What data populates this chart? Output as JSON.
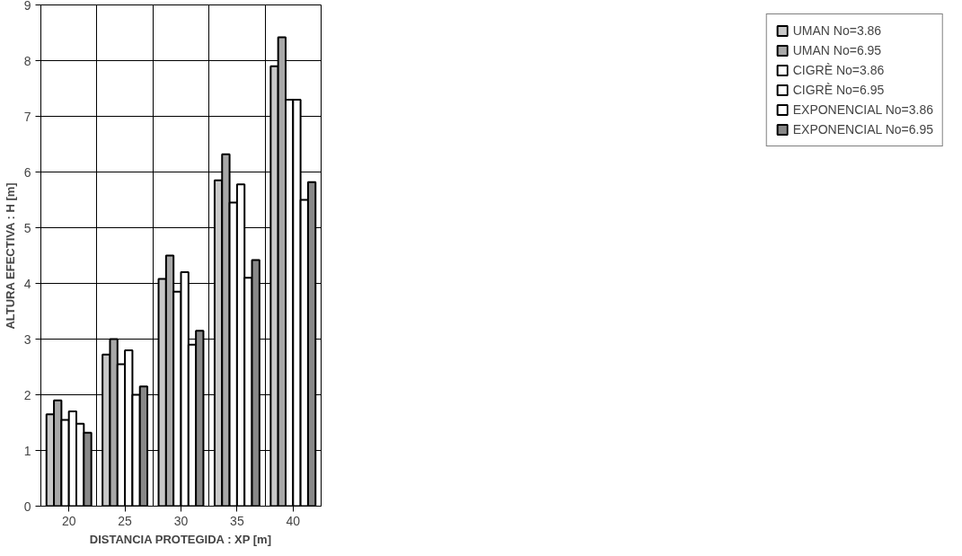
{
  "chart_data": {
    "type": "bar",
    "xlabel": "DISTANCIA PROTEGIDA : XP [m]",
    "ylabel": "ALTURA EFECTIVA : H [m]",
    "categories": [
      "20",
      "25",
      "30",
      "35",
      "40"
    ],
    "series": [
      {
        "name": "UMAN No=3.86",
        "color": "#c8c8c8",
        "values": [
          1.65,
          2.72,
          4.08,
          5.85,
          7.9
        ]
      },
      {
        "name": "UMAN No=6.95",
        "color": "#a8a8a8",
        "values": [
          1.9,
          3.0,
          4.5,
          6.32,
          8.42
        ]
      },
      {
        "name": "CIGRÈ No=3.86",
        "color": "#ffffff",
        "values": [
          1.55,
          2.55,
          3.85,
          5.45,
          7.3
        ]
      },
      {
        "name": "CIGRÈ No=6.95",
        "color": "#ffffff",
        "values": [
          1.7,
          2.8,
          4.2,
          5.78,
          7.3
        ]
      },
      {
        "name": "EXPONENCIAL No=3.86",
        "color": "#ffffff",
        "values": [
          1.48,
          2.0,
          2.9,
          4.1,
          5.5
        ]
      },
      {
        "name": "EXPONENCIAL No=6.95",
        "color": "#888888",
        "values": [
          1.32,
          2.15,
          3.15,
          4.42,
          5.82
        ]
      }
    ],
    "ylim": [
      0,
      9
    ],
    "yticks": [
      0,
      1,
      2,
      3,
      4,
      5,
      6,
      7,
      8,
      9
    ],
    "grid": true,
    "legend": "right"
  }
}
